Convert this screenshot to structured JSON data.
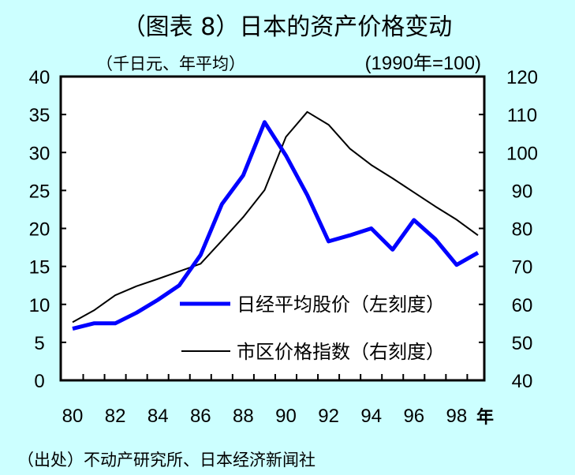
{
  "chart_data": {
    "type": "line",
    "title": "（图表 8）日本的资产价格变动",
    "left_unit": "（千日元、年平均）",
    "right_unit": "(1990年=100)",
    "x_unit": "年",
    "source": "（出处）不动产研究所、日本经济新闻社",
    "x": [
      80,
      81,
      82,
      83,
      84,
      85,
      86,
      87,
      88,
      89,
      90,
      91,
      92,
      93,
      94,
      95,
      96,
      97,
      98,
      99
    ],
    "x_tick_labels": [
      "80",
      "82",
      "84",
      "86",
      "88",
      "90",
      "92",
      "94",
      "96",
      "98"
    ],
    "y_left": {
      "range": [
        0,
        40
      ],
      "ticks": [
        "0",
        "5",
        "10",
        "15",
        "20",
        "25",
        "30",
        "35",
        "40"
      ]
    },
    "y_right": {
      "range": [
        40,
        120
      ],
      "ticks": [
        "40",
        "50",
        "60",
        "70",
        "80",
        "90",
        "100",
        "110",
        "120"
      ]
    },
    "series": [
      {
        "name": "日经平均股价（左刻度）",
        "axis": "left",
        "color": "#0000ff",
        "values": [
          6.8,
          7.5,
          7.5,
          8.9,
          10.6,
          12.5,
          16.5,
          23.2,
          27.0,
          34.0,
          29.6,
          24.4,
          18.3,
          19.1,
          20.0,
          17.2,
          21.1,
          18.6,
          15.2,
          16.8
        ]
      },
      {
        "name": "市区价格指数（右刻度）",
        "axis": "right",
        "color": "#000000",
        "values": [
          55.3,
          58.4,
          62.4,
          64.8,
          66.7,
          68.7,
          70.7,
          76.8,
          83.0,
          90.1,
          104.1,
          110.7,
          107.3,
          101.0,
          96.7,
          93.2,
          89.5,
          85.8,
          82.3,
          78.2
        ]
      }
    ],
    "legend_placement": "bottom-right",
    "grid": false
  }
}
